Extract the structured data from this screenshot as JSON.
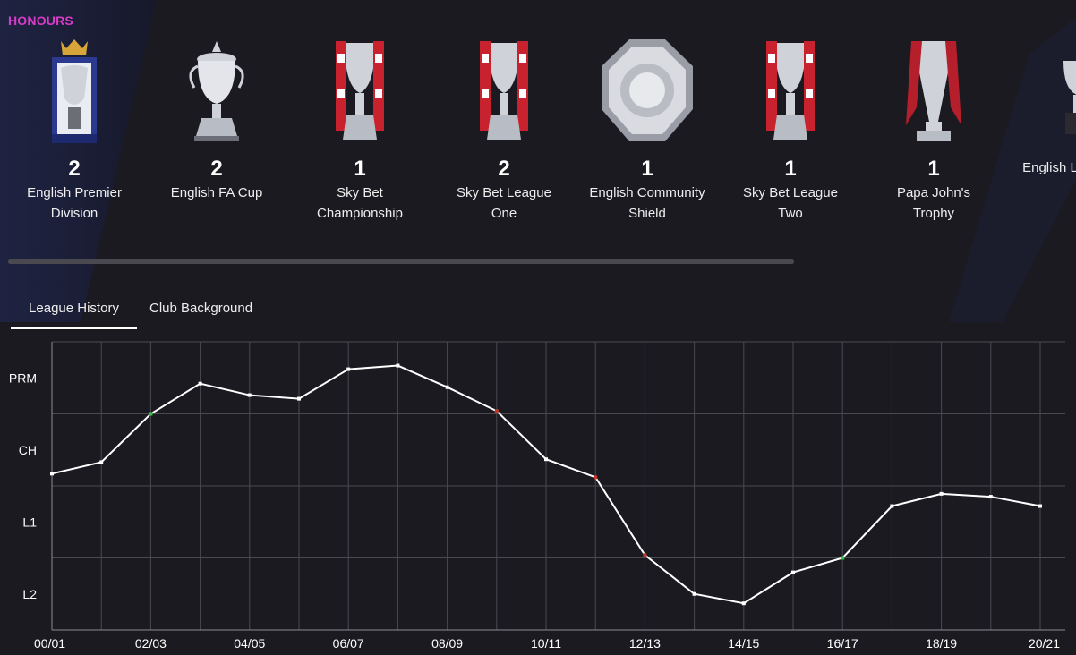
{
  "section_title": "HONOURS",
  "honours": [
    {
      "count": "2",
      "name": "English Premier Division",
      "trophy": "premier-league-trophy-icon"
    },
    {
      "count": "2",
      "name": "English FA Cup",
      "trophy": "fa-cup-trophy-icon"
    },
    {
      "count": "1",
      "name": "Sky Bet Championship",
      "trophy": "championship-trophy-icon"
    },
    {
      "count": "2",
      "name": "Sky Bet League One",
      "trophy": "league-one-trophy-icon"
    },
    {
      "count": "1",
      "name": "English Community Shield",
      "trophy": "community-shield-icon"
    },
    {
      "count": "1",
      "name": "Sky Bet League Two",
      "trophy": "league-two-trophy-icon"
    },
    {
      "count": "1",
      "name": "Papa John's Trophy",
      "trophy": "papa-johns-trophy-icon"
    },
    {
      "count": "",
      "name": "English League Di",
      "trophy": "league-division-trophy-icon"
    }
  ],
  "tabs": [
    {
      "label": "League History",
      "active": true
    },
    {
      "label": "Club Background",
      "active": false
    }
  ],
  "colors": {
    "accent": "#d63cc8",
    "background": "#1b1a21",
    "line": "#ffffff",
    "promotion_marker": "#2ecc40",
    "relegation_marker": "#c0392b",
    "grid": "#4a4950"
  },
  "chart_data": {
    "type": "line",
    "title": "",
    "xlabel": "",
    "ylabel": "",
    "y_tick_labels": [
      "PRM",
      "CH",
      "L1",
      "L2"
    ],
    "x_tick_labels": [
      "00/01",
      "02/03",
      "04/05",
      "06/07",
      "08/09",
      "10/11",
      "12/13",
      "14/15",
      "16/17",
      "18/19",
      "20/21"
    ],
    "ylim": [
      0,
      4
    ],
    "grid": true,
    "seasons": [
      "00/01",
      "01/02",
      "02/03",
      "03/04",
      "04/05",
      "05/06",
      "06/07",
      "07/08",
      "08/09",
      "09/10",
      "10/11",
      "11/12",
      "12/13",
      "13/14",
      "14/15",
      "15/16",
      "16/17",
      "17/18",
      "18/19",
      "19/20",
      "20/21"
    ],
    "values": [
      2.17,
      2.33,
      3.0,
      3.42,
      3.26,
      3.21,
      3.62,
      3.67,
      3.37,
      3.04,
      2.37,
      2.12,
      1.04,
      0.5,
      0.37,
      0.8,
      1.0,
      1.72,
      1.89,
      1.85,
      1.72
    ],
    "markers": [
      {
        "season": "02/03",
        "kind": "promotion"
      },
      {
        "season": "09/10",
        "kind": "relegation"
      },
      {
        "season": "11/12",
        "kind": "relegation"
      },
      {
        "season": "12/13",
        "kind": "relegation"
      },
      {
        "season": "16/17",
        "kind": "promotion"
      }
    ]
  }
}
